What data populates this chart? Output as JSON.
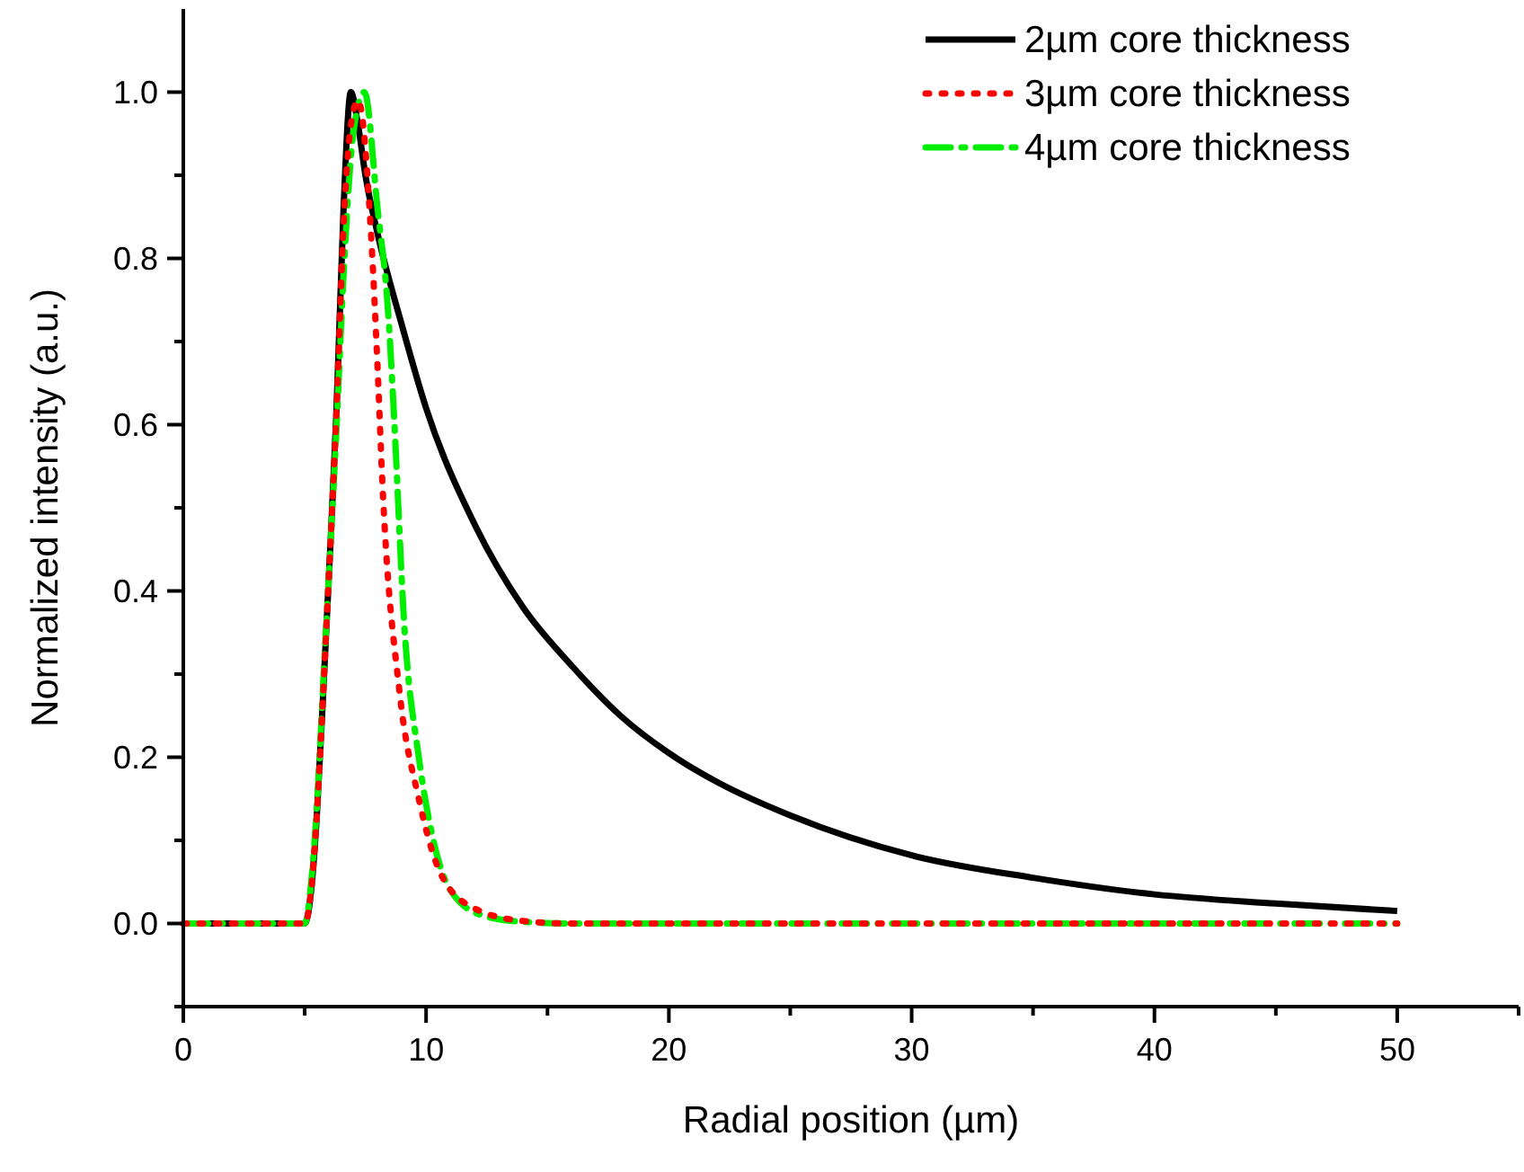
{
  "chart_data": {
    "type": "line",
    "xlabel": "Radial position (µm)",
    "ylabel": "Normalized intensity (a.u.)",
    "xlim": [
      0,
      55
    ],
    "xticks": [
      0,
      {
        "value": 5,
        "label": null
      },
      10,
      {
        "value": 15,
        "label": null
      },
      20,
      {
        "value": 25,
        "label": null
      },
      30,
      {
        "value": 35,
        "label": null
      },
      40,
      {
        "value": 45,
        "label": null
      },
      50,
      {
        "value": 55,
        "label": null
      }
    ],
    "ylim": [
      -0.1,
      1.1
    ],
    "yticks": [
      {
        "value": -0.1,
        "label": null
      },
      "0.0",
      {
        "value": 0.1,
        "label": null
      },
      0.2,
      {
        "value": 0.3,
        "label": null
      },
      0.4,
      {
        "value": 0.5,
        "label": null
      },
      0.6,
      {
        "value": 0.7,
        "label": null
      },
      0.8,
      {
        "value": 0.9,
        "label": null
      },
      "1.0"
    ],
    "grid": false,
    "legend": "top right",
    "marker": "none",
    "series": [
      {
        "name": "2µm core thickness",
        "color": "#000000",
        "line_style": "solid",
        "x": [
          0,
          5,
          5.3,
          5.5,
          5.8,
          6,
          6.3,
          6.6,
          6.9,
          7.2,
          7.5,
          8,
          9,
          10,
          12,
          14,
          16,
          18,
          20,
          22,
          25,
          30,
          35,
          40,
          45,
          50
        ],
        "values": [
          0,
          0,
          0.05,
          0.13,
          0.3,
          0.42,
          0.61,
          0.86,
          1.0,
          0.96,
          0.9,
          0.83,
          0.72,
          0.62,
          0.48,
          0.38,
          0.31,
          0.25,
          0.205,
          0.17,
          0.13,
          0.082,
          0.055,
          0.035,
          0.024,
          0.015
        ]
      },
      {
        "name": "3µm core thickness",
        "color": "#ff0000",
        "line_style": "dotted",
        "x": [
          0,
          5,
          5.3,
          5.5,
          5.8,
          6,
          6.3,
          6.6,
          6.9,
          7.2,
          7.75,
          8,
          8.2,
          8.9,
          9.7,
          10.6,
          12,
          14,
          16,
          20,
          30,
          40,
          50
        ],
        "values": [
          0,
          0,
          0.05,
          0.13,
          0.3,
          0.42,
          0.61,
          0.84,
          0.96,
          0.99,
          0.82,
          0.67,
          0.53,
          0.28,
          0.15,
          0.06,
          0.018,
          0.003,
          0,
          0,
          0,
          0,
          0
        ]
      },
      {
        "name": "4µm core thickness",
        "color": "#00ee00",
        "line_style": "dashdot",
        "x": [
          0,
          5,
          5.3,
          5.5,
          5.8,
          6,
          6.3,
          6.6,
          7,
          7.46,
          8,
          8.45,
          8.68,
          9.1,
          9.7,
          10.3,
          11,
          12.3,
          14,
          16,
          20,
          30,
          40,
          50
        ],
        "values": [
          0,
          0,
          0.06,
          0.14,
          0.31,
          0.42,
          0.59,
          0.78,
          0.95,
          1.0,
          0.86,
          0.73,
          0.61,
          0.36,
          0.2,
          0.1,
          0.04,
          0.01,
          0.002,
          0,
          0,
          0,
          0,
          0
        ]
      }
    ]
  }
}
